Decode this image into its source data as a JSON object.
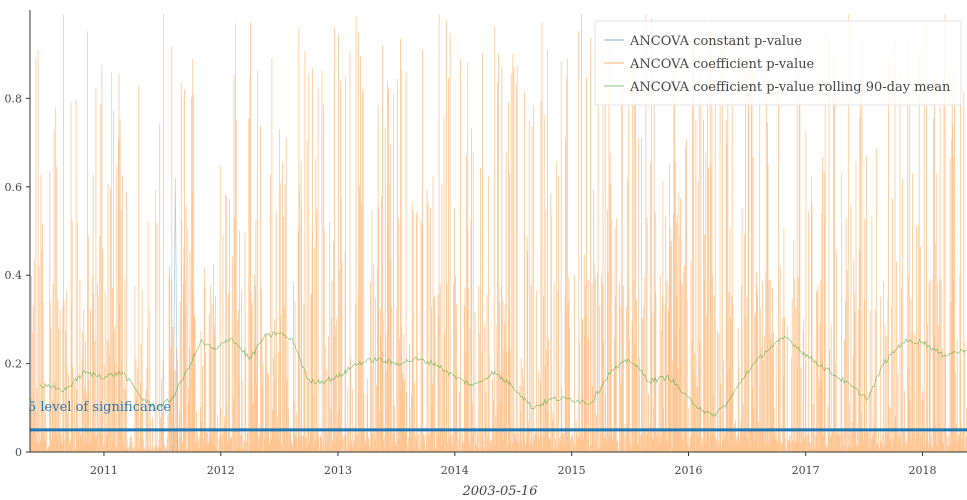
{
  "chart_data": {
    "type": "line",
    "xlabel": "2003-05-16",
    "ylabel": "",
    "xlim": [
      "2010-05-15",
      "2018-05-20"
    ],
    "ylim": [
      0,
      1
    ],
    "grid": false,
    "legend_position": "top-right",
    "x_ticks": [
      "2011",
      "2012",
      "2013",
      "2014",
      "2015",
      "2016",
      "2017",
      "2018"
    ],
    "y_ticks": [
      "0",
      "0.2",
      "0.4",
      "0.6",
      "0.8"
    ],
    "series": [
      {
        "name": "ANCOVA constant p-value",
        "color": "#1f77b4",
        "note_values": "near-zero constant p-values throughout, with an isolated spike near 0.62 in 2011-08",
        "values": [
          [
            "2010-05-15",
            0.0
          ],
          [
            "2011-08-05",
            0.0
          ],
          [
            "2011-08-12",
            0.62
          ],
          [
            "2011-08-19",
            0.0
          ],
          [
            "2018-05-20",
            0.0
          ]
        ]
      },
      {
        "name": "ANCOVA coefficient p-value",
        "color": "#ff7f0e",
        "values": []
      },
      {
        "name": "ANCOVA coefficient p-value rolling 90-day mean",
        "color": "#2ca02c",
        "values": [
          [
            "2010-06-15",
            0.15
          ],
          [
            "2010-09-01",
            0.14
          ],
          [
            "2010-11-01",
            0.18
          ],
          [
            "2011-01-01",
            0.17
          ],
          [
            "2011-03-01",
            0.18
          ],
          [
            "2011-05-01",
            0.12
          ],
          [
            "2011-06-15",
            0.1
          ],
          [
            "2011-08-01",
            0.12
          ],
          [
            "2011-09-15",
            0.18
          ],
          [
            "2011-11-01",
            0.25
          ],
          [
            "2011-12-15",
            0.23
          ],
          [
            "2012-02-01",
            0.26
          ],
          [
            "2012-04-01",
            0.21
          ],
          [
            "2012-05-15",
            0.26
          ],
          [
            "2012-07-01",
            0.27
          ],
          [
            "2012-08-15",
            0.25
          ],
          [
            "2012-10-01",
            0.16
          ],
          [
            "2012-11-15",
            0.16
          ],
          [
            "2013-01-01",
            0.17
          ],
          [
            "2013-03-01",
            0.2
          ],
          [
            "2013-05-01",
            0.21
          ],
          [
            "2013-07-01",
            0.2
          ],
          [
            "2013-09-01",
            0.21
          ],
          [
            "2013-11-01",
            0.2
          ],
          [
            "2014-01-01",
            0.17
          ],
          [
            "2014-03-01",
            0.15
          ],
          [
            "2014-05-01",
            0.18
          ],
          [
            "2014-07-01",
            0.15
          ],
          [
            "2014-09-01",
            0.1
          ],
          [
            "2014-11-01",
            0.12
          ],
          [
            "2015-01-01",
            0.12
          ],
          [
            "2015-03-01",
            0.11
          ],
          [
            "2015-05-01",
            0.18
          ],
          [
            "2015-07-01",
            0.21
          ],
          [
            "2015-09-01",
            0.16
          ],
          [
            "2015-11-01",
            0.17
          ],
          [
            "2016-01-01",
            0.12
          ],
          [
            "2016-03-15",
            0.08
          ],
          [
            "2016-05-01",
            0.11
          ],
          [
            "2016-07-01",
            0.18
          ],
          [
            "2016-09-01",
            0.23
          ],
          [
            "2016-11-01",
            0.26
          ],
          [
            "2017-01-01",
            0.22
          ],
          [
            "2017-03-01",
            0.19
          ],
          [
            "2017-05-01",
            0.16
          ],
          [
            "2017-07-15",
            0.12
          ],
          [
            "2017-09-01",
            0.2
          ],
          [
            "2017-11-01",
            0.25
          ],
          [
            "2018-01-01",
            0.25
          ],
          [
            "2018-03-01",
            0.22
          ],
          [
            "2018-05-20",
            0.23
          ]
        ]
      }
    ],
    "reference_line": {
      "y": 0.05,
      "color": "#1f77b4",
      "label": "5 level of significance"
    }
  }
}
